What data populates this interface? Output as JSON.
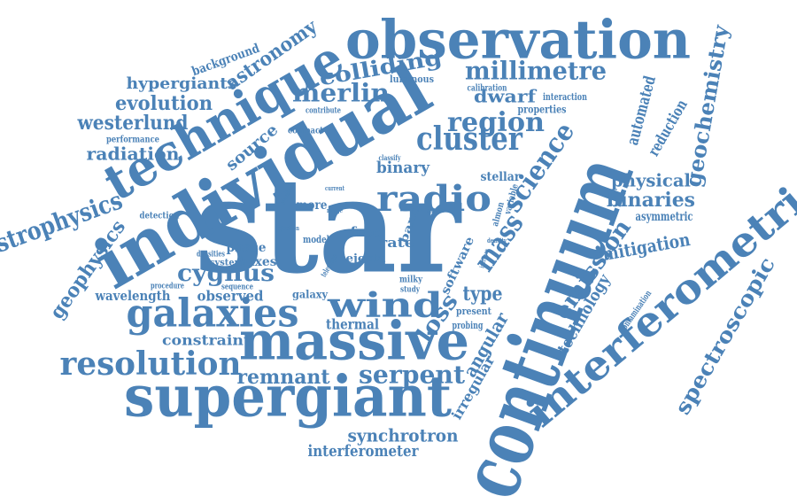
{
  "color": "#4b82b7",
  "words": [
    {
      "text": "star",
      "emphasis": "largest"
    },
    {
      "text": "continuum"
    },
    {
      "text": "individual"
    },
    {
      "text": "observation"
    },
    {
      "text": "technique"
    },
    {
      "text": "interferometric"
    },
    {
      "text": "supergiant"
    },
    {
      "text": "massive"
    },
    {
      "text": "galaxies"
    },
    {
      "text": "radio"
    },
    {
      "text": "resolution"
    },
    {
      "text": "wind"
    },
    {
      "text": "cluster"
    },
    {
      "text": "region"
    },
    {
      "text": "millimetre"
    },
    {
      "text": "merlin"
    },
    {
      "text": "colliding"
    },
    {
      "text": "mass"
    },
    {
      "text": "science"
    },
    {
      "text": "emission"
    },
    {
      "text": "geochemistry"
    },
    {
      "text": "spectroscopic"
    },
    {
      "text": "astrophysics"
    },
    {
      "text": "geophysics"
    },
    {
      "text": "cygnus"
    },
    {
      "text": "serpent"
    },
    {
      "text": "remnant"
    },
    {
      "text": "loss"
    },
    {
      "text": "westerlund"
    },
    {
      "text": "evolution"
    },
    {
      "text": "hypergiants"
    },
    {
      "text": "radiation"
    },
    {
      "text": "astronomy"
    },
    {
      "text": "dwarf"
    },
    {
      "text": "binaries"
    },
    {
      "text": "physical"
    },
    {
      "text": "automated"
    },
    {
      "text": "reduction"
    },
    {
      "text": "mitigation"
    },
    {
      "text": "technology"
    },
    {
      "text": "angular"
    },
    {
      "text": "irregular"
    },
    {
      "text": "synchrotron"
    },
    {
      "text": "interferometer"
    },
    {
      "text": "thermal"
    },
    {
      "text": "type"
    },
    {
      "text": "constraint"
    },
    {
      "text": "observed"
    },
    {
      "text": "wavelength"
    },
    {
      "text": "source"
    },
    {
      "text": "binary"
    },
    {
      "text": "stellar"
    },
    {
      "text": "software"
    },
    {
      "text": "free"
    },
    {
      "text": "rate"
    },
    {
      "text": "phase"
    },
    {
      "text": "fluxes"
    },
    {
      "text": "band"
    },
    {
      "text": "ejecta"
    },
    {
      "text": "galaxy"
    },
    {
      "text": "more"
    },
    {
      "text": "background"
    },
    {
      "text": "luminous"
    },
    {
      "text": "calibration"
    },
    {
      "text": "interaction"
    },
    {
      "text": "properties"
    },
    {
      "text": "performance"
    },
    {
      "text": "compact"
    },
    {
      "text": "contribute"
    },
    {
      "text": "detection"
    },
    {
      "text": "asymmetric"
    },
    {
      "text": "contamination"
    },
    {
      "text": "present"
    },
    {
      "text": "probing"
    },
    {
      "text": "variable"
    },
    {
      "text": "almon"
    },
    {
      "text": "model"
    },
    {
      "text": "system"
    },
    {
      "text": "densities"
    },
    {
      "text": "procedure"
    },
    {
      "text": "sequence"
    },
    {
      "text": "milky"
    },
    {
      "text": "study"
    },
    {
      "text": "telescope"
    },
    {
      "text": "classify"
    },
    {
      "text": "pipeline"
    },
    {
      "text": "current"
    },
    {
      "text": "ejection"
    },
    {
      "text": "density"
    },
    {
      "text": "simple"
    },
    {
      "text": "increase"
    },
    {
      "text": "range"
    }
  ]
}
